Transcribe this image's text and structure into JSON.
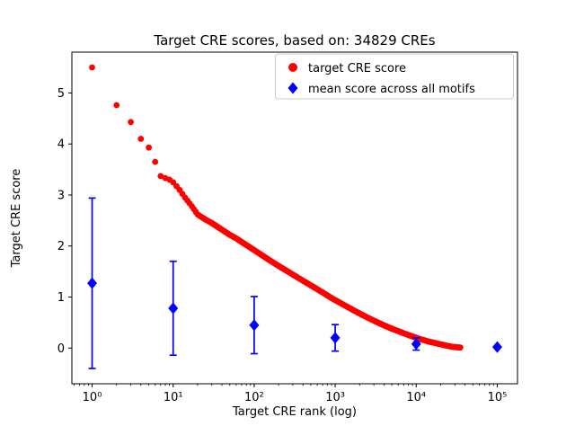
{
  "figure": {
    "background": "#ffffff",
    "axes_color": "#000000"
  },
  "chart_data": {
    "type": "scatter",
    "title": "Target CRE scores, based on: 34829 CREs",
    "xlabel": "Target CRE rank (log)",
    "ylabel": "Target CRE score",
    "xscale": "log",
    "xlim_log10": [
      -0.25,
      5.25
    ],
    "ylim": [
      -0.7,
      5.8
    ],
    "grid": false,
    "yticks": [
      "0",
      "1",
      "2",
      "3",
      "4",
      "5"
    ],
    "ytick_values": [
      0,
      1,
      2,
      3,
      4,
      5
    ],
    "xticks": [
      {
        "value": 1,
        "label": "10⁰"
      },
      {
        "value": 10,
        "label": "10¹"
      },
      {
        "value": 100,
        "label": "10²"
      },
      {
        "value": 1000,
        "label": "10³"
      },
      {
        "value": 10000,
        "label": "10⁴"
      },
      {
        "value": 100000,
        "label": "10⁵"
      }
    ],
    "legend": {
      "position": "upper right",
      "entries": [
        "target CRE score",
        "mean score across all motifs"
      ]
    },
    "series": [
      {
        "name": "target CRE score",
        "marker": "circle",
        "color": "#ff0000",
        "points": [
          [
            1,
            5.5
          ],
          [
            2,
            4.76
          ],
          [
            3,
            4.43
          ],
          [
            4,
            4.1
          ],
          [
            5,
            3.93
          ],
          [
            6,
            3.65
          ],
          [
            7,
            3.37
          ],
          [
            8,
            3.33
          ],
          [
            9,
            3.3
          ],
          [
            10,
            3.25
          ],
          [
            12,
            3.1
          ],
          [
            14,
            2.95
          ],
          [
            17,
            2.78
          ],
          [
            20,
            2.62
          ],
          [
            25,
            2.52
          ],
          [
            30,
            2.45
          ],
          [
            40,
            2.32
          ],
          [
            50,
            2.22
          ],
          [
            60,
            2.15
          ],
          [
            80,
            2.02
          ],
          [
            100,
            1.92
          ],
          [
            130,
            1.8
          ],
          [
            170,
            1.68
          ],
          [
            220,
            1.57
          ],
          [
            300,
            1.44
          ],
          [
            400,
            1.32
          ],
          [
            550,
            1.19
          ],
          [
            700,
            1.09
          ],
          [
            900,
            0.98
          ],
          [
            1200,
            0.87
          ],
          [
            1600,
            0.76
          ],
          [
            2100,
            0.66
          ],
          [
            2800,
            0.56
          ],
          [
            3700,
            0.47
          ],
          [
            5000,
            0.38
          ],
          [
            6500,
            0.31
          ],
          [
            8500,
            0.24
          ],
          [
            11000,
            0.18
          ],
          [
            14000,
            0.13
          ],
          [
            18000,
            0.09
          ],
          [
            23000,
            0.05
          ],
          [
            29000,
            0.02
          ],
          [
            35000,
            0.01
          ]
        ]
      },
      {
        "name": "mean score across all motifs",
        "marker": "diamond",
        "color": "#0000ff",
        "points": [
          [
            1,
            1.27
          ],
          [
            10,
            0.78
          ],
          [
            100,
            0.45
          ],
          [
            1000,
            0.2
          ],
          [
            10000,
            0.08
          ],
          [
            100000,
            0.02
          ]
        ],
        "yerr": [
          1.67,
          0.92,
          0.56,
          0.26,
          0.12,
          0.0
        ]
      }
    ]
  }
}
